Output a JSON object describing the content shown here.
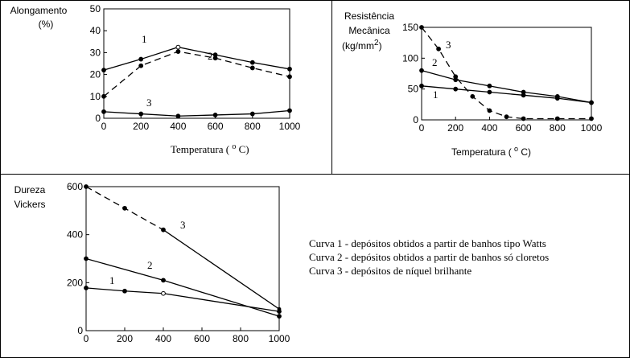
{
  "chart_data": [
    {
      "type": "line",
      "ylabel": "Alongamento\n(%)",
      "xlabel": "Temperatura ( °C)",
      "xlabel_base": "Temperatura (",
      "xlabel_sup": "o",
      "xlabel_end": "C)",
      "xlim": [
        0,
        1000
      ],
      "ylim": [
        0,
        50
      ],
      "xticks": [
        0,
        200,
        400,
        600,
        800,
        1000
      ],
      "yticks": [
        0,
        10,
        20,
        30,
        40,
        50
      ],
      "series": [
        {
          "name": "1",
          "dash": false,
          "x": [
            0,
            200,
            400,
            600,
            800,
            1000
          ],
          "y": [
            22,
            27,
            32.5,
            29,
            25.5,
            22.5
          ]
        },
        {
          "name": "2",
          "dash": true,
          "x": [
            0,
            200,
            400,
            600,
            800,
            1000
          ],
          "y": [
            10,
            24,
            30.5,
            27.5,
            23,
            19
          ]
        },
        {
          "name": "3",
          "dash": false,
          "x": [
            0,
            200,
            400,
            600,
            800,
            1000
          ],
          "y": [
            3,
            2,
            1,
            1.5,
            2,
            3.5
          ]
        }
      ]
    },
    {
      "type": "line",
      "ylabel": "Resistência\nMecânica\n(kg/mm2)",
      "ylabel_lines": [
        "Resistência",
        "Mecânica"
      ],
      "ylabel_unit_base": "(kg/mm",
      "ylabel_unit_sup": "2",
      "ylabel_unit_end": ")",
      "xlabel_base": "Temperatura (",
      "xlabel_sup": "o",
      "xlabel_end": "C)",
      "xlim": [
        0,
        1000
      ],
      "ylim": [
        0,
        150
      ],
      "xticks": [
        0,
        200,
        400,
        600,
        800,
        1000
      ],
      "yticks": [
        0,
        50,
        100,
        150
      ],
      "series": [
        {
          "name": "1",
          "dash": false,
          "x": [
            0,
            200,
            400,
            600,
            800,
            1000
          ],
          "y": [
            55,
            50,
            45,
            40,
            35,
            28
          ]
        },
        {
          "name": "2",
          "dash": false,
          "x": [
            0,
            200,
            400,
            600,
            800,
            1000
          ],
          "y": [
            80,
            65,
            55,
            45,
            38,
            28
          ]
        },
        {
          "name": "3",
          "dash": true,
          "x": [
            0,
            100,
            200,
            300,
            400,
            500,
            600,
            800,
            1000
          ],
          "y": [
            150,
            115,
            70,
            38,
            15,
            5,
            2,
            2,
            2
          ]
        }
      ]
    },
    {
      "type": "line",
      "ylabel": "Dureza\nVickers",
      "ylabel_lines": [
        "Dureza",
        "Vickers"
      ],
      "xlim": [
        0,
        1000
      ],
      "ylim": [
        0,
        600
      ],
      "xticks": [
        0,
        200,
        400,
        600,
        800,
        1000
      ],
      "yticks": [
        0,
        200,
        400,
        600
      ],
      "series": [
        {
          "name": "1",
          "dash": false,
          "x": [
            0,
            200,
            400,
            1000
          ],
          "y": [
            178,
            165,
            155,
            80
          ]
        },
        {
          "name": "2",
          "dash": false,
          "x": [
            0,
            400,
            1000
          ],
          "y": [
            300,
            210,
            60
          ]
        },
        {
          "name": "3",
          "dash": true,
          "x": [
            0,
            200,
            400
          ],
          "y": [
            600,
            510,
            420
          ],
          "solid_tail": {
            "x": [
              400,
              1000
            ],
            "y": [
              420,
              90
            ]
          }
        }
      ]
    }
  ],
  "legend": [
    "Curva 1 - depósitos obtidos a partir de banhos tipo Watts",
    "Curva 2 - depósitos obtidos a partir de banhos só cloretos",
    "Curva 3 - depósitos de níquel brilhante"
  ]
}
